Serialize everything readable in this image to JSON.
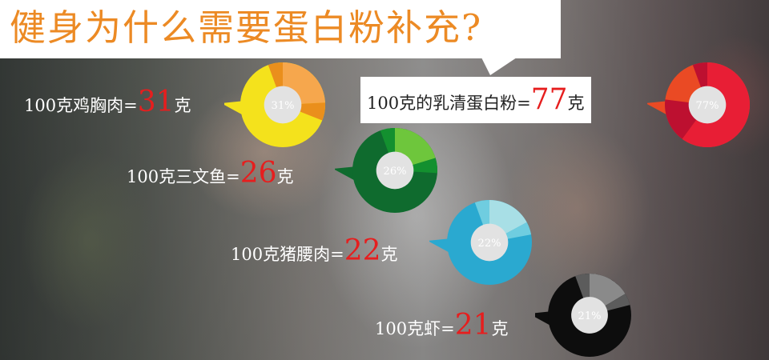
{
  "title": "健身为什么需要蛋白粉补充?",
  "items": [
    {
      "prefix": "100克鸡胸肉=",
      "value": "31",
      "unit": "克",
      "percent": "31%",
      "ratio": 0.31,
      "colors": {
        "main": "#f4e21c",
        "accent": "#f6a74d",
        "dark": "#ea8f1c"
      }
    },
    {
      "prefix": "100克的乳清蛋白粉=",
      "value": "77",
      "unit": "克",
      "percent": "77%",
      "ratio": 0.77,
      "colors": {
        "main": "#ea4a24",
        "accent": "#e81e35",
        "dark": "#bd1030"
      }
    },
    {
      "prefix": "100克三文鱼=",
      "value": "26",
      "unit": "克",
      "percent": "26%",
      "ratio": 0.26,
      "colors": {
        "main": "#0f6b2e",
        "accent": "#6ec63c",
        "dark": "#13902f"
      }
    },
    {
      "prefix": "100克猪腰肉=",
      "value": "22",
      "unit": "克",
      "percent": "22%",
      "ratio": 0.22,
      "colors": {
        "main": "#2aa9d0",
        "accent": "#a8dfe6",
        "dark": "#6fcde0"
      }
    },
    {
      "prefix": "100克虾=",
      "value": "21",
      "unit": "克",
      "percent": "21%",
      "ratio": 0.21,
      "colors": {
        "main": "#0d0d0d",
        "accent": "#8a8a8a",
        "dark": "#5c5c5c"
      }
    }
  ]
}
